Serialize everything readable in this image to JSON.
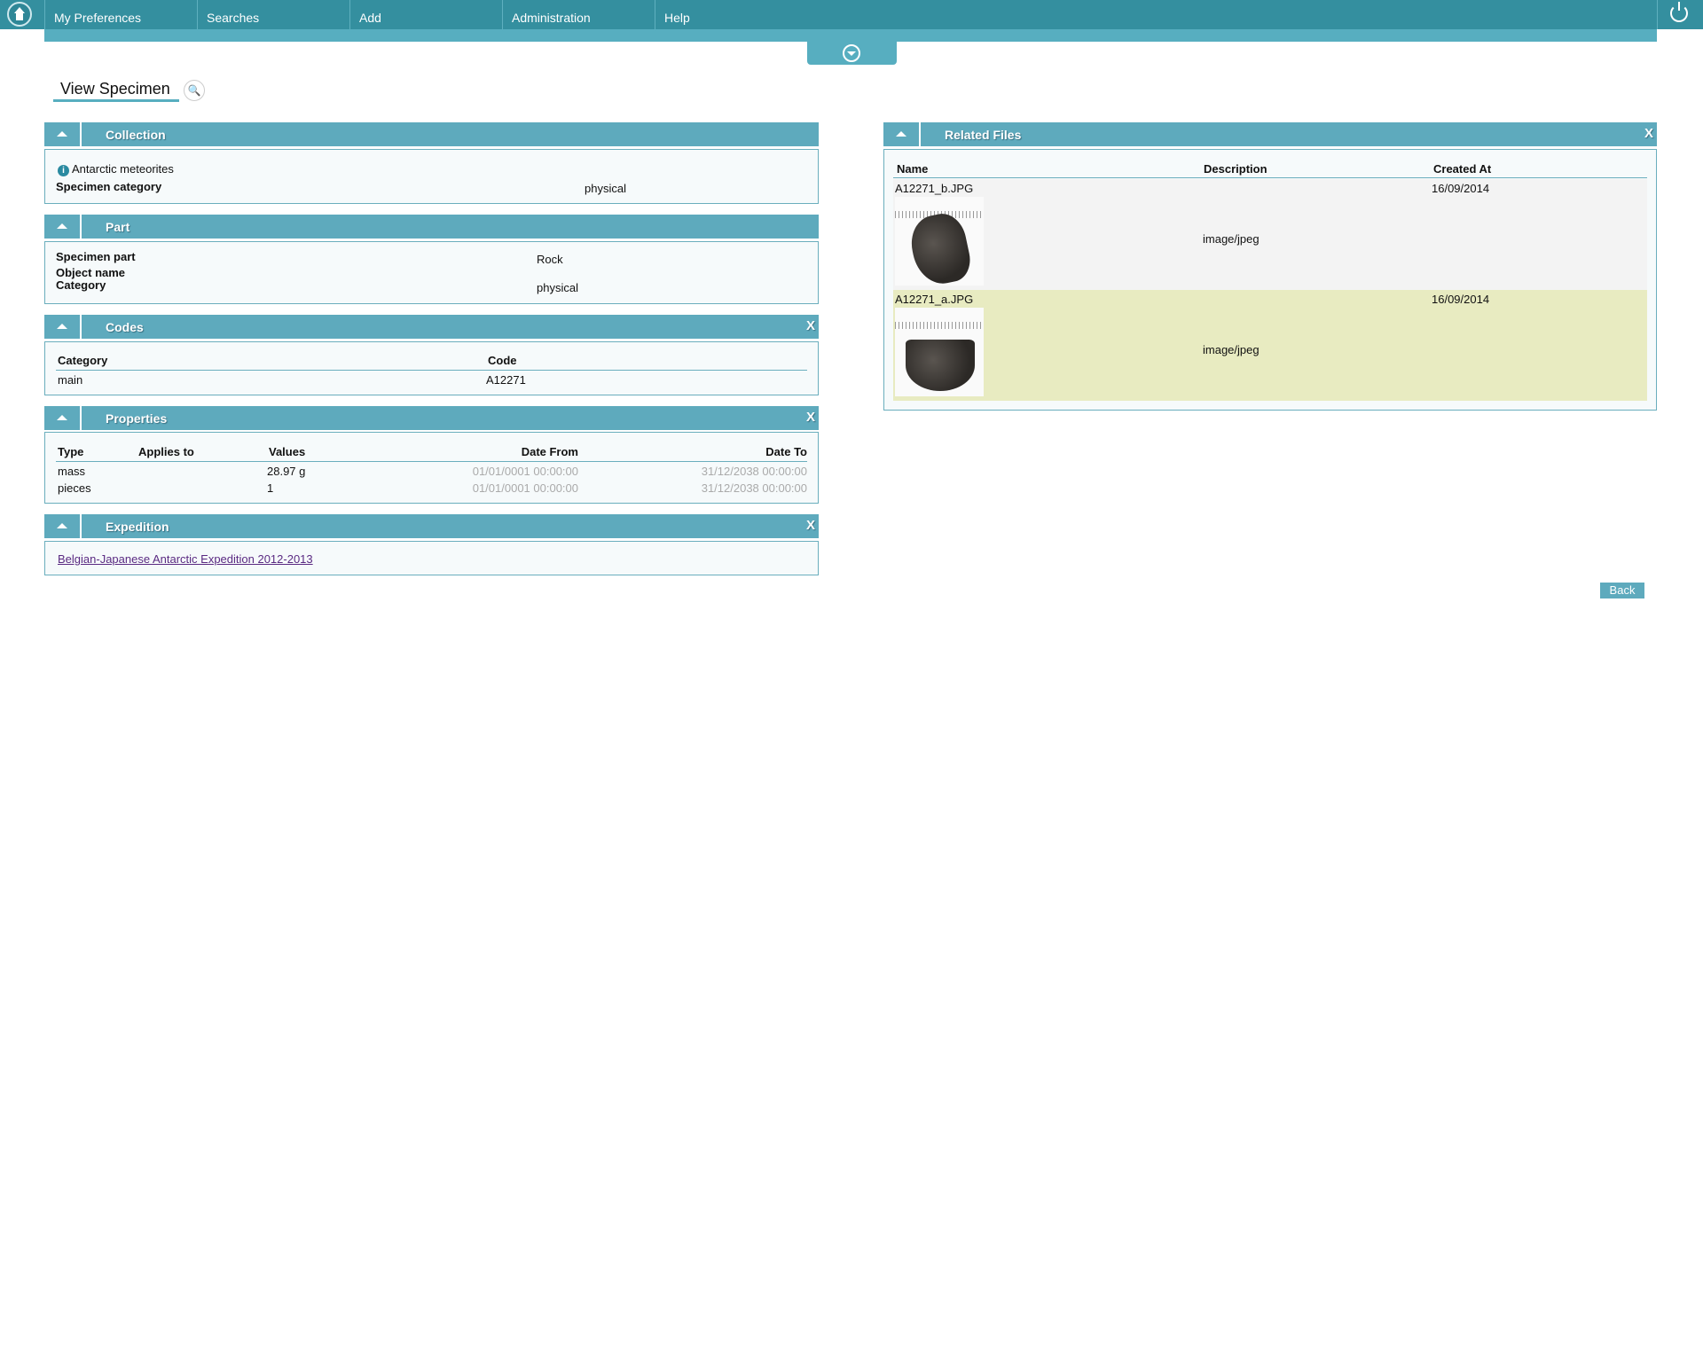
{
  "nav": {
    "items": [
      "My Preferences",
      "Searches",
      "Add",
      "Administration",
      "Help"
    ]
  },
  "page": {
    "title": "View Specimen"
  },
  "collection": {
    "title": "Collection",
    "name": "Antarctic meteorites",
    "category_label": "Specimen category",
    "category_value": "physical"
  },
  "part": {
    "title": "Part",
    "specimen_part_label": "Specimen part",
    "specimen_part_value": "Rock",
    "object_name_label": "Object name",
    "category_label": "Category",
    "category_value": "physical"
  },
  "codes": {
    "title": "Codes",
    "headers": [
      "Category",
      "Code"
    ],
    "rows": [
      [
        "main",
        "A12271"
      ]
    ]
  },
  "properties": {
    "title": "Properties",
    "headers": [
      "Type",
      "Applies to",
      "Values",
      "Date From",
      "Date To"
    ],
    "rows": [
      [
        "mass",
        "",
        "28.97 g",
        "01/01/0001 00:00:00",
        "31/12/2038 00:00:00"
      ],
      [
        "pieces",
        "",
        "1",
        "01/01/0001 00:00:00",
        "31/12/2038 00:00:00"
      ]
    ]
  },
  "expedition": {
    "title": "Expedition",
    "link": "Belgian-Japanese Antarctic Expedition 2012-2013"
  },
  "related_files": {
    "title": "Related Files",
    "headers": [
      "Name",
      "Description",
      "Created At"
    ],
    "rows": [
      {
        "name": "A12271_b.JPG",
        "description": "image/jpeg",
        "created": "16/09/2014"
      },
      {
        "name": "A12271_a.JPG",
        "description": "image/jpeg",
        "created": "16/09/2014"
      }
    ]
  },
  "colors": {
    "nav": "#348f9f",
    "header": "#5eaabd",
    "highlight_row": "#e8ebc1"
  },
  "buttons": {
    "back": "Back",
    "close": "X"
  }
}
